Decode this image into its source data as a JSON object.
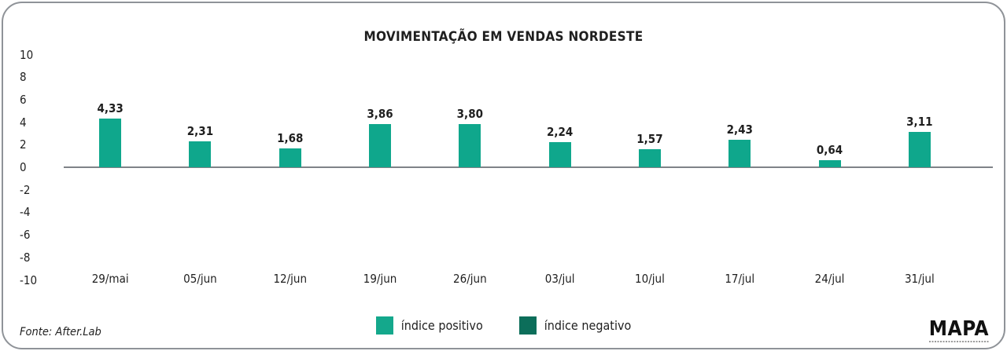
{
  "chart_data": {
    "type": "bar",
    "title": "MOVIMENTAÇÃO EM VENDAS NORDESTE",
    "categories": [
      "29/mai",
      "05/jun",
      "12/jun",
      "19/jun",
      "26/jun",
      "03/jul",
      "10/jul",
      "17/jul",
      "24/jul",
      "31/jul"
    ],
    "values": [
      4.33,
      2.31,
      1.68,
      3.86,
      3.8,
      2.24,
      1.57,
      2.43,
      0.64,
      3.11
    ],
    "value_labels": [
      "4,33",
      "2,31",
      "1,68",
      "3,86",
      "3,80",
      "2,24",
      "1,57",
      "2,43",
      "0,64",
      "3,11"
    ],
    "xlabel": "",
    "ylabel": "",
    "ylim": [
      -10,
      10
    ],
    "yticks": [
      10,
      8,
      6,
      4,
      2,
      0,
      -2,
      -4,
      -6,
      -8,
      -10
    ],
    "ytick_labels": [
      "10",
      "8",
      "6",
      "4",
      "2",
      "0",
      "-2",
      "-4",
      "-6",
      "-8",
      "-10"
    ],
    "grid": false,
    "bar_color": "#0fa78c",
    "axis_line_color": "#7f8388",
    "legend_position": "bottom-center",
    "legend": [
      {
        "label": "índice positivo",
        "color": "#14a88c"
      },
      {
        "label": "índice negativo",
        "color": "#0c6e5a"
      }
    ]
  },
  "footer": {
    "source": "Fonte: After.Lab",
    "logo": "MAPA"
  }
}
